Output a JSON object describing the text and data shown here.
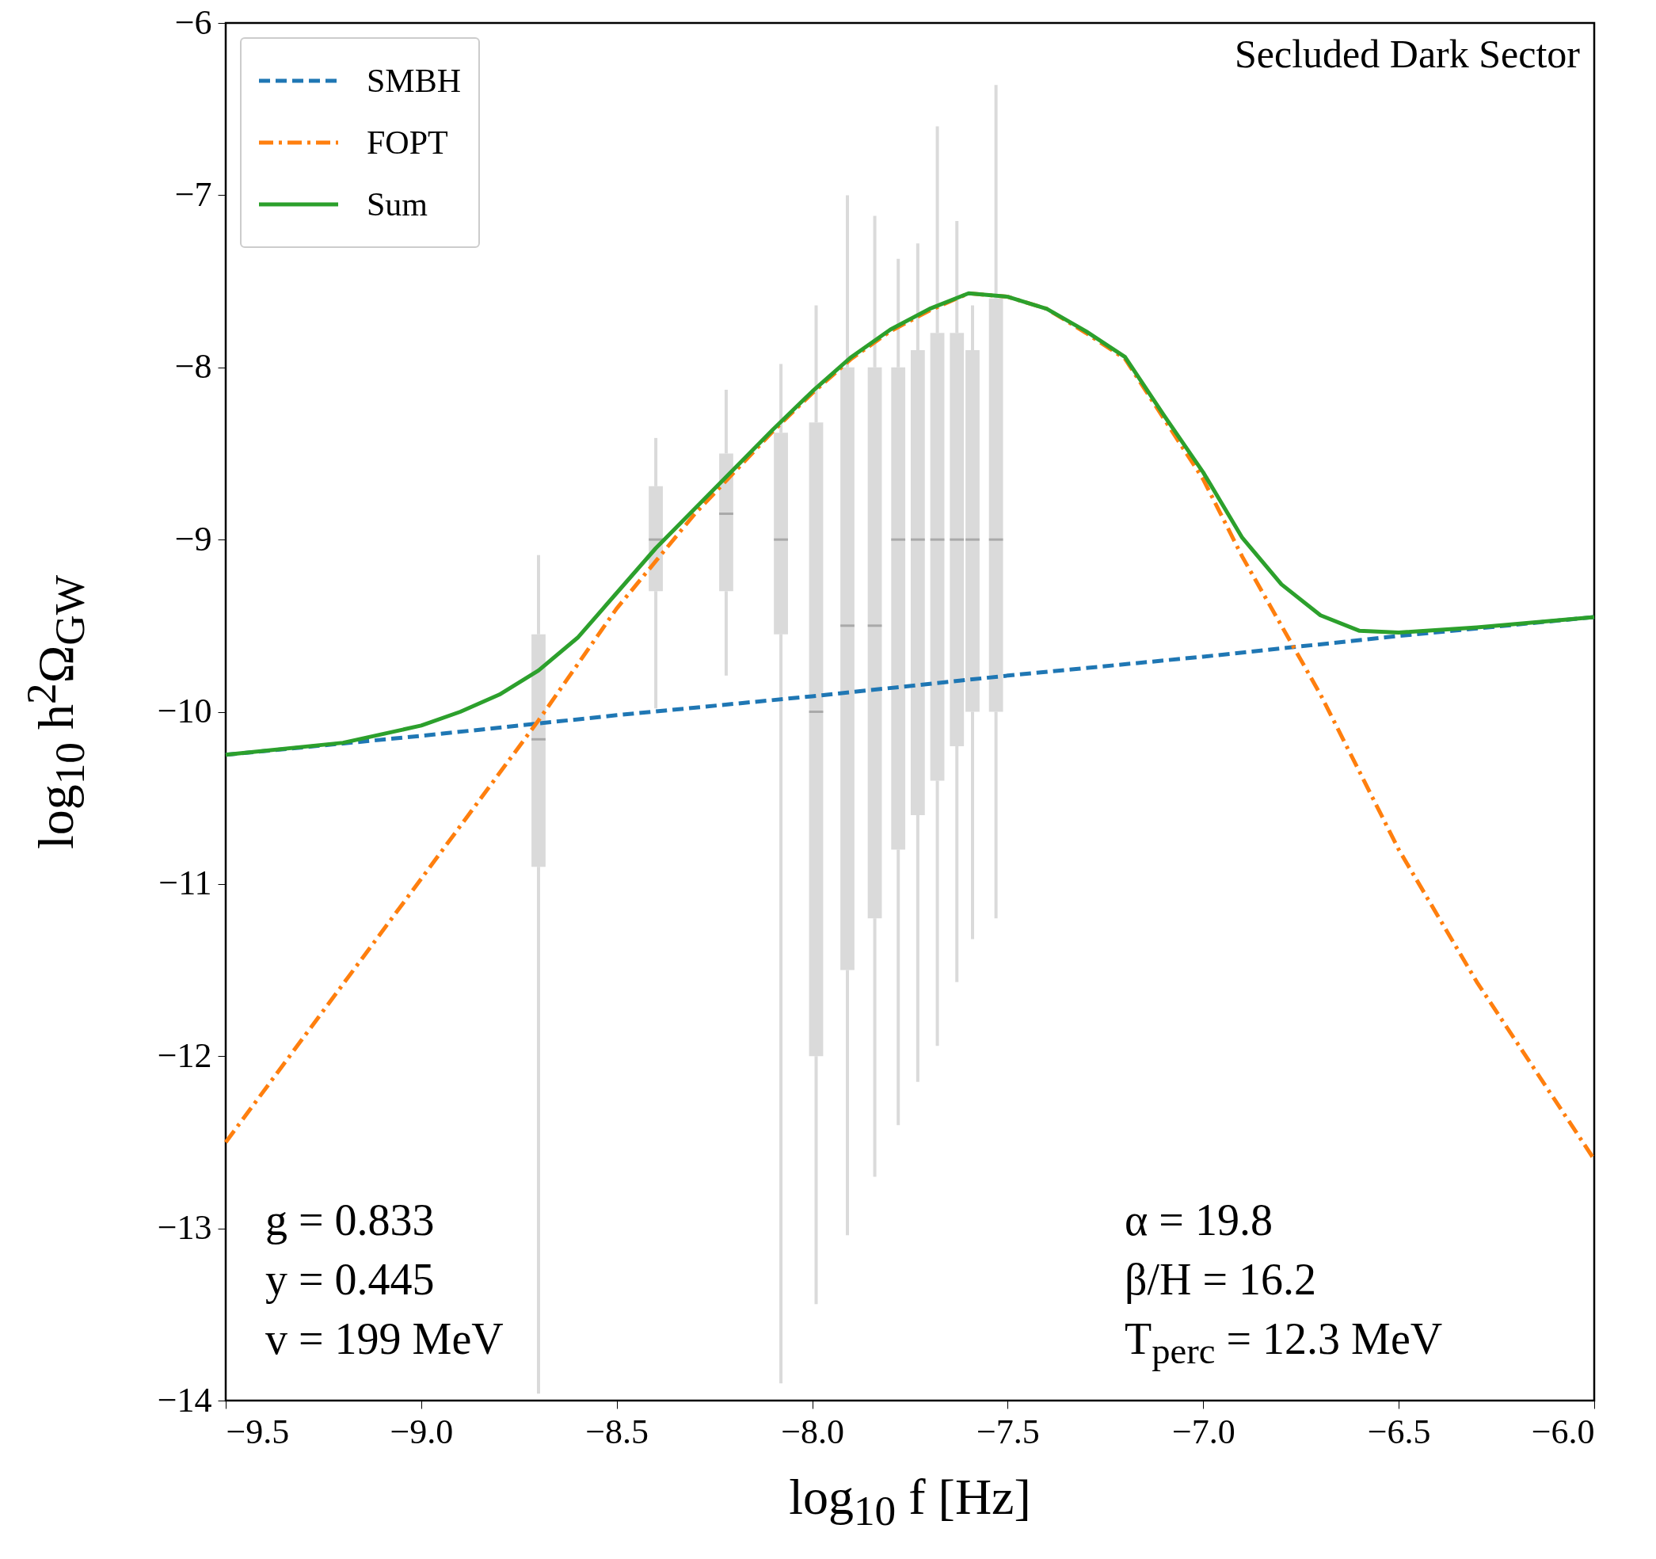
{
  "chart_data": {
    "type": "line",
    "xlabel": "log$_{10}$ f [Hz]",
    "ylabel": "log$_{10}$ h$^{2}$Ω$_{GW}$",
    "xlim": [
      -9.5,
      -6.0
    ],
    "ylim": [
      -14,
      -6
    ],
    "xticks": [
      {
        "value": -9.5,
        "label": "−9.5"
      },
      {
        "value": -9.0,
        "label": "−9.0"
      },
      {
        "value": -8.5,
        "label": "−8.5"
      },
      {
        "value": -8.0,
        "label": "−8.0"
      },
      {
        "value": -7.5,
        "label": "−7.5"
      },
      {
        "value": -7.0,
        "label": "−7.0"
      },
      {
        "value": -6.5,
        "label": "−6.5"
      },
      {
        "value": -6.0,
        "label": "−6.0"
      }
    ],
    "yticks": [
      -14,
      -13,
      -12,
      -11,
      -10,
      -9,
      -8,
      -7,
      -6
    ],
    "grid": false,
    "legend": "top left",
    "marker": "none",
    "annotations": [
      "Secluded Dark Sector",
      "g = 0.833",
      "y = 0.445",
      "v = 199 MeV",
      "α = 19.8",
      "β/H = 16.2",
      "T$_{perc}$ = 12.3 MeV"
    ],
    "series": [
      {
        "type": "box",
        "color": "#d3d3d3",
        "x": [
          -8.7,
          -8.4,
          -8.22,
          -8.08,
          -7.99,
          -7.91,
          -7.84,
          -7.78,
          -7.73,
          -7.68,
          -7.63,
          -7.59,
          -7.53
        ],
        "boxes": [
          {
            "low": -13.96,
            "q1": -10.9,
            "median": -10.16,
            "q3": -9.55,
            "high": -9.09
          },
          {
            "low": -9.98,
            "q1": -9.3,
            "median": -9.0,
            "q3": -8.69,
            "high": -8.41
          },
          {
            "low": -9.79,
            "q1": -9.3,
            "median": -8.85,
            "q3": -8.5,
            "high": -8.13
          },
          {
            "low": -13.9,
            "q1": -9.55,
            "median": -9.0,
            "q3": -8.38,
            "high": -7.98
          },
          {
            "low": -13.44,
            "q1": -12.0,
            "median": -10.0,
            "q3": -8.32,
            "high": -7.64
          },
          {
            "low": -13.04,
            "q1": -11.5,
            "median": -9.5,
            "q3": -8.0,
            "high": -7.0
          },
          {
            "low": -12.7,
            "q1": -11.2,
            "median": -9.5,
            "q3": -8.0,
            "high": -7.12
          },
          {
            "low": -12.4,
            "q1": -10.8,
            "median": -9.0,
            "q3": -8.0,
            "high": -7.37
          },
          {
            "low": -12.15,
            "q1": -10.6,
            "median": -9.0,
            "q3": -7.9,
            "high": -7.28
          },
          {
            "low": -11.94,
            "q1": -10.4,
            "median": -9.0,
            "q3": -7.8,
            "high": -6.6
          },
          {
            "low": -11.57,
            "q1": -10.2,
            "median": -9.0,
            "q3": -7.8,
            "high": -7.15
          },
          {
            "low": -11.32,
            "q1": -10.0,
            "median": -9.0,
            "q3": -7.9,
            "high": -7.64
          },
          {
            "low": -11.2,
            "q1": -10.0,
            "median": -9.0,
            "q3": -7.6,
            "high": -6.36
          }
        ]
      },
      {
        "name": "SMBH",
        "color": "#1f77b4",
        "line_style": "dashed",
        "x": [
          -9.5,
          -9.0,
          -8.5,
          -8.0,
          -7.5,
          -7.0,
          -6.5,
          -6.0
        ],
        "values": [
          -10.25,
          -10.14,
          -10.02,
          -9.91,
          -9.79,
          -9.68,
          -9.56,
          -9.45
        ]
      },
      {
        "name": "FOPT",
        "color": "#ff7f0e",
        "line_style": "dashdot",
        "x": [
          -9.5,
          -9.0,
          -8.7,
          -8.5,
          -8.3,
          -8.1,
          -8.0,
          -7.9,
          -7.8,
          -7.7,
          -7.6,
          -7.5,
          -7.4,
          -7.3,
          -7.2,
          -7.1,
          -7.0,
          -6.9,
          -6.8,
          -6.7,
          -6.5,
          -6.3,
          -6.0
        ],
        "values": [
          -12.5,
          -10.97,
          -10.05,
          -9.4,
          -8.85,
          -8.37,
          -8.15,
          -7.95,
          -7.79,
          -7.67,
          -7.57,
          -7.59,
          -7.66,
          -7.8,
          -7.95,
          -8.3,
          -8.65,
          -9.1,
          -9.5,
          -9.9,
          -10.8,
          -11.57,
          -12.6
        ]
      },
      {
        "name": "Sum",
        "color": "#2ca02c",
        "line_style": "solid",
        "x": [
          -9.5,
          -9.2,
          -9.0,
          -8.9,
          -8.8,
          -8.7,
          -8.6,
          -8.5,
          -8.4,
          -8.3,
          -8.2,
          -8.1,
          -8.0,
          -7.9,
          -7.8,
          -7.7,
          -7.6,
          -7.5,
          -7.4,
          -7.3,
          -7.2,
          -7.1,
          -7.0,
          -6.9,
          -6.8,
          -6.7,
          -6.6,
          -6.5,
          -6.3,
          -6.0
        ],
        "values": [
          -10.25,
          -10.18,
          -10.08,
          -10.0,
          -9.9,
          -9.76,
          -9.57,
          -9.31,
          -9.05,
          -8.82,
          -8.59,
          -8.36,
          -8.14,
          -7.94,
          -7.78,
          -7.66,
          -7.57,
          -7.59,
          -7.66,
          -7.79,
          -7.94,
          -8.28,
          -8.61,
          -8.99,
          -9.26,
          -9.44,
          -9.53,
          -9.54,
          -9.51,
          -9.45
        ]
      }
    ]
  }
}
